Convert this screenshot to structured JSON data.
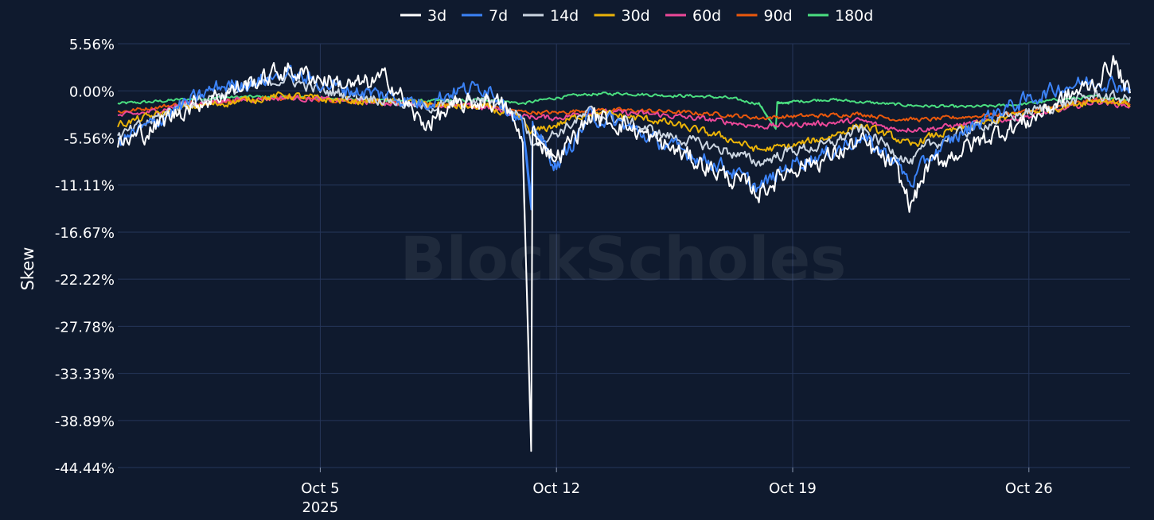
{
  "chart_data": {
    "type": "line",
    "ylabel": "Skew",
    "watermark": "BlockScholes",
    "x_start": "2025-09-29",
    "x_end": "2025-10-29",
    "ylim": [
      -44.44,
      5.56
    ],
    "y_ticks": [
      "5.56%",
      "0.00%",
      "-5.56%",
      "-11.11%",
      "-16.67%",
      "-22.22%",
      "-27.78%",
      "-33.33%",
      "-38.89%",
      "-44.44%"
    ],
    "y_tick_values": [
      5.56,
      0,
      -5.56,
      -11.11,
      -16.67,
      -22.22,
      -27.78,
      -33.33,
      -38.89,
      -44.44
    ],
    "x_ticks": [
      {
        "date": "2025-10-05",
        "label": "Oct 5",
        "sublabel": "2025"
      },
      {
        "date": "2025-10-12",
        "label": "Oct 12",
        "sublabel": ""
      },
      {
        "date": "2025-10-19",
        "label": "Oct 19",
        "sublabel": ""
      },
      {
        "date": "2025-10-26",
        "label": "Oct 26",
        "sublabel": ""
      }
    ],
    "grid": true,
    "legend_position": "top-center",
    "series": [
      {
        "name": "3d",
        "color": "#ffffff",
        "noise": 1.4,
        "points": [
          [
            "2025-09-29",
            -6.5
          ],
          [
            "2025-09-30",
            -4.5
          ],
          [
            "2025-10-01",
            -2.0
          ],
          [
            "2025-10-02",
            -0.5
          ],
          [
            "2025-10-03",
            1.0
          ],
          [
            "2025-10-04",
            2.5
          ],
          [
            "2025-10-05",
            1.5
          ],
          [
            "2025-10-06",
            0.5
          ],
          [
            "2025-10-07",
            1.5
          ],
          [
            "2025-10-08",
            -4.0
          ],
          [
            "2025-10-09",
            -2.0
          ],
          [
            "2025-10-10",
            -1.0
          ],
          [
            "2025-10-10 12:00",
            -2.0
          ],
          [
            "2025-10-11",
            -6.0
          ],
          [
            "2025-10-11 06:00",
            -42.5
          ],
          [
            "2025-10-11 07:00",
            -5.0
          ],
          [
            "2025-10-12",
            -8.0
          ],
          [
            "2025-10-13",
            -3.0
          ],
          [
            "2025-10-14",
            -4.0
          ],
          [
            "2025-10-15",
            -6.0
          ],
          [
            "2025-10-16",
            -8.0
          ],
          [
            "2025-10-17",
            -10.0
          ],
          [
            "2025-10-18",
            -12.0
          ],
          [
            "2025-10-19",
            -9.0
          ],
          [
            "2025-10-20",
            -8.0
          ],
          [
            "2025-10-21",
            -6.0
          ],
          [
            "2025-10-22",
            -9.0
          ],
          [
            "2025-10-22 12:00",
            -13.5
          ],
          [
            "2025-10-23",
            -9.0
          ],
          [
            "2025-10-24",
            -7.0
          ],
          [
            "2025-10-25",
            -5.0
          ],
          [
            "2025-10-26",
            -3.5
          ],
          [
            "2025-10-27",
            -1.0
          ],
          [
            "2025-10-28",
            1.0
          ],
          [
            "2025-10-28 12:00",
            3.5
          ],
          [
            "2025-10-29",
            -0.5
          ]
        ]
      },
      {
        "name": "7d",
        "color": "#3b82f6",
        "noise": 1.1,
        "points": [
          [
            "2025-09-29",
            -6.0
          ],
          [
            "2025-09-30",
            -4.0
          ],
          [
            "2025-10-01",
            -1.5
          ],
          [
            "2025-10-02",
            0.5
          ],
          [
            "2025-10-03",
            1.0
          ],
          [
            "2025-10-04",
            2.0
          ],
          [
            "2025-10-05",
            1.0
          ],
          [
            "2025-10-06",
            0.0
          ],
          [
            "2025-10-07",
            -0.5
          ],
          [
            "2025-10-08",
            -1.5
          ],
          [
            "2025-10-09",
            0.0
          ],
          [
            "2025-10-10",
            0.5
          ],
          [
            "2025-10-11",
            -4.0
          ],
          [
            "2025-10-11 06:00",
            -14.0
          ],
          [
            "2025-10-11 07:00",
            -4.0
          ],
          [
            "2025-10-12",
            -9.0
          ],
          [
            "2025-10-13",
            -3.0
          ],
          [
            "2025-10-14",
            -4.0
          ],
          [
            "2025-10-15",
            -6.0
          ],
          [
            "2025-10-16",
            -7.5
          ],
          [
            "2025-10-17",
            -9.0
          ],
          [
            "2025-10-18",
            -11.5
          ],
          [
            "2025-10-19",
            -8.5
          ],
          [
            "2025-10-20",
            -7.5
          ],
          [
            "2025-10-21",
            -5.5
          ],
          [
            "2025-10-22",
            -8.0
          ],
          [
            "2025-10-22 12:00",
            -11.0
          ],
          [
            "2025-10-23",
            -8.0
          ],
          [
            "2025-10-24",
            -5.0
          ],
          [
            "2025-10-25",
            -2.5
          ],
          [
            "2025-10-26",
            -1.0
          ],
          [
            "2025-10-27",
            0.5
          ],
          [
            "2025-10-28",
            1.2
          ],
          [
            "2025-10-29",
            0.5
          ]
        ]
      },
      {
        "name": "14d",
        "color": "#cbd5e1",
        "noise": 0.8,
        "points": [
          [
            "2025-09-29",
            -5.5
          ],
          [
            "2025-09-30",
            -3.5
          ],
          [
            "2025-10-01",
            -1.5
          ],
          [
            "2025-10-02",
            -0.5
          ],
          [
            "2025-10-03",
            0.5
          ],
          [
            "2025-10-04",
            1.5
          ],
          [
            "2025-10-05",
            0.0
          ],
          [
            "2025-10-06",
            -0.5
          ],
          [
            "2025-10-07",
            -1.0
          ],
          [
            "2025-10-08",
            -2.0
          ],
          [
            "2025-10-09",
            -1.5
          ],
          [
            "2025-10-10",
            -1.0
          ],
          [
            "2025-10-11",
            -3.0
          ],
          [
            "2025-10-11 06:00",
            -6.0
          ],
          [
            "2025-10-12",
            -5.0
          ],
          [
            "2025-10-13",
            -2.5
          ],
          [
            "2025-10-14",
            -3.5
          ],
          [
            "2025-10-15",
            -5.0
          ],
          [
            "2025-10-16",
            -6.0
          ],
          [
            "2025-10-17",
            -7.0
          ],
          [
            "2025-10-18",
            -8.5
          ],
          [
            "2025-10-19",
            -7.0
          ],
          [
            "2025-10-20",
            -6.5
          ],
          [
            "2025-10-21",
            -4.5
          ],
          [
            "2025-10-22",
            -7.0
          ],
          [
            "2025-10-22 12:00",
            -8.5
          ],
          [
            "2025-10-23",
            -6.5
          ],
          [
            "2025-10-24",
            -5.0
          ],
          [
            "2025-10-25",
            -3.5
          ],
          [
            "2025-10-26",
            -2.5
          ],
          [
            "2025-10-27",
            -1.5
          ],
          [
            "2025-10-28",
            -0.5
          ],
          [
            "2025-10-29",
            -1.0
          ]
        ]
      },
      {
        "name": "30d",
        "color": "#eab308",
        "noise": 0.55,
        "points": [
          [
            "2025-09-29",
            -4.0
          ],
          [
            "2025-09-30",
            -3.0
          ],
          [
            "2025-10-01",
            -2.0
          ],
          [
            "2025-10-02",
            -1.5
          ],
          [
            "2025-10-03",
            -1.0
          ],
          [
            "2025-10-04",
            -0.5
          ],
          [
            "2025-10-05",
            -1.0
          ],
          [
            "2025-10-06",
            -1.2
          ],
          [
            "2025-10-07",
            -1.3
          ],
          [
            "2025-10-08",
            -1.5
          ],
          [
            "2025-10-09",
            -1.8
          ],
          [
            "2025-10-10",
            -2.0
          ],
          [
            "2025-10-11",
            -3.5
          ],
          [
            "2025-10-11 06:00",
            -5.0
          ],
          [
            "2025-10-12",
            -4.0
          ],
          [
            "2025-10-13",
            -2.5
          ],
          [
            "2025-10-14",
            -3.0
          ],
          [
            "2025-10-15",
            -3.5
          ],
          [
            "2025-10-16",
            -4.5
          ],
          [
            "2025-10-17",
            -5.5
          ],
          [
            "2025-10-18",
            -7.0
          ],
          [
            "2025-10-19",
            -6.5
          ],
          [
            "2025-10-20",
            -5.5
          ],
          [
            "2025-10-21",
            -4.0
          ],
          [
            "2025-10-22",
            -5.5
          ],
          [
            "2025-10-22 12:00",
            -6.5
          ],
          [
            "2025-10-23",
            -5.5
          ],
          [
            "2025-10-24",
            -4.5
          ],
          [
            "2025-10-25",
            -3.5
          ],
          [
            "2025-10-26",
            -2.5
          ],
          [
            "2025-10-27",
            -1.8
          ],
          [
            "2025-10-28",
            -1.0
          ],
          [
            "2025-10-29",
            -1.5
          ]
        ]
      },
      {
        "name": "60d",
        "color": "#ec4899",
        "noise": 0.4,
        "points": [
          [
            "2025-09-29",
            -3.0
          ],
          [
            "2025-09-30",
            -2.5
          ],
          [
            "2025-10-01",
            -1.5
          ],
          [
            "2025-10-02",
            -1.2
          ],
          [
            "2025-10-03",
            -1.0
          ],
          [
            "2025-10-04",
            -0.8
          ],
          [
            "2025-10-05",
            -1.0
          ],
          [
            "2025-10-06",
            -1.2
          ],
          [
            "2025-10-07",
            -1.4
          ],
          [
            "2025-10-08",
            -1.6
          ],
          [
            "2025-10-09",
            -1.8
          ],
          [
            "2025-10-10",
            -2.0
          ],
          [
            "2025-10-11",
            -3.0
          ],
          [
            "2025-10-12",
            -3.2
          ],
          [
            "2025-10-13",
            -2.5
          ],
          [
            "2025-10-14",
            -2.6
          ],
          [
            "2025-10-15",
            -2.8
          ],
          [
            "2025-10-16",
            -3.2
          ],
          [
            "2025-10-17",
            -3.6
          ],
          [
            "2025-10-18",
            -4.2
          ],
          [
            "2025-10-19",
            -4.0
          ],
          [
            "2025-10-20",
            -3.8
          ],
          [
            "2025-10-21",
            -3.5
          ],
          [
            "2025-10-22",
            -4.5
          ],
          [
            "2025-10-23",
            -4.5
          ],
          [
            "2025-10-24",
            -4.0
          ],
          [
            "2025-10-25",
            -3.5
          ],
          [
            "2025-10-26",
            -3.0
          ],
          [
            "2025-10-27",
            -2.2
          ],
          [
            "2025-10-28",
            -1.2
          ],
          [
            "2025-10-29",
            -1.8
          ]
        ]
      },
      {
        "name": "90d",
        "color": "#ea580c",
        "noise": 0.3,
        "points": [
          [
            "2025-09-29",
            -2.5
          ],
          [
            "2025-09-30",
            -2.0
          ],
          [
            "2025-10-01",
            -1.5
          ],
          [
            "2025-10-02",
            -1.2
          ],
          [
            "2025-10-03",
            -1.0
          ],
          [
            "2025-10-04",
            -0.8
          ],
          [
            "2025-10-05",
            -1.0
          ],
          [
            "2025-10-06",
            -1.2
          ],
          [
            "2025-10-07",
            -1.4
          ],
          [
            "2025-10-08",
            -1.5
          ],
          [
            "2025-10-09",
            -1.7
          ],
          [
            "2025-10-10",
            -1.8
          ],
          [
            "2025-10-11",
            -2.5
          ],
          [
            "2025-10-12",
            -2.6
          ],
          [
            "2025-10-13",
            -2.2
          ],
          [
            "2025-10-14",
            -2.3
          ],
          [
            "2025-10-15",
            -2.4
          ],
          [
            "2025-10-16",
            -2.6
          ],
          [
            "2025-10-17",
            -2.8
          ],
          [
            "2025-10-18",
            -3.2
          ],
          [
            "2025-10-19",
            -3.0
          ],
          [
            "2025-10-20",
            -2.9
          ],
          [
            "2025-10-21",
            -2.7
          ],
          [
            "2025-10-22",
            -3.3
          ],
          [
            "2025-10-23",
            -3.4
          ],
          [
            "2025-10-24",
            -3.1
          ],
          [
            "2025-10-25",
            -2.8
          ],
          [
            "2025-10-26",
            -2.4
          ],
          [
            "2025-10-27",
            -1.8
          ],
          [
            "2025-10-28",
            -1.0
          ],
          [
            "2025-10-29",
            -1.5
          ]
        ]
      },
      {
        "name": "180d",
        "color": "#4ade80",
        "noise": 0.22,
        "points": [
          [
            "2025-09-29",
            -1.5
          ],
          [
            "2025-09-30",
            -1.3
          ],
          [
            "2025-10-01",
            -1.0
          ],
          [
            "2025-10-02",
            -0.8
          ],
          [
            "2025-10-03",
            -0.7
          ],
          [
            "2025-10-04",
            -0.8
          ],
          [
            "2025-10-05",
            -0.9
          ],
          [
            "2025-10-06",
            -1.0
          ],
          [
            "2025-10-07",
            -1.1
          ],
          [
            "2025-10-08",
            -1.2
          ],
          [
            "2025-10-09",
            -1.2
          ],
          [
            "2025-10-10",
            -1.0
          ],
          [
            "2025-10-11",
            -1.5
          ],
          [
            "2025-10-12",
            -0.8
          ],
          [
            "2025-10-13",
            -0.4
          ],
          [
            "2025-10-14",
            -0.3
          ],
          [
            "2025-10-15",
            -0.5
          ],
          [
            "2025-10-16",
            -0.6
          ],
          [
            "2025-10-17",
            -0.8
          ],
          [
            "2025-10-18",
            -1.5
          ],
          [
            "2025-10-18 12:00",
            -4.5
          ],
          [
            "2025-10-18 13:00",
            -1.5
          ],
          [
            "2025-10-19",
            -1.3
          ],
          [
            "2025-10-20",
            -1.0
          ],
          [
            "2025-10-21",
            -1.3
          ],
          [
            "2025-10-22",
            -1.6
          ],
          [
            "2025-10-23",
            -1.8
          ],
          [
            "2025-10-24",
            -1.9
          ],
          [
            "2025-10-25",
            -1.8
          ],
          [
            "2025-10-26",
            -1.5
          ],
          [
            "2025-10-27",
            -1.0
          ],
          [
            "2025-10-28",
            -0.7
          ],
          [
            "2025-10-29",
            -1.0
          ]
        ]
      }
    ]
  }
}
